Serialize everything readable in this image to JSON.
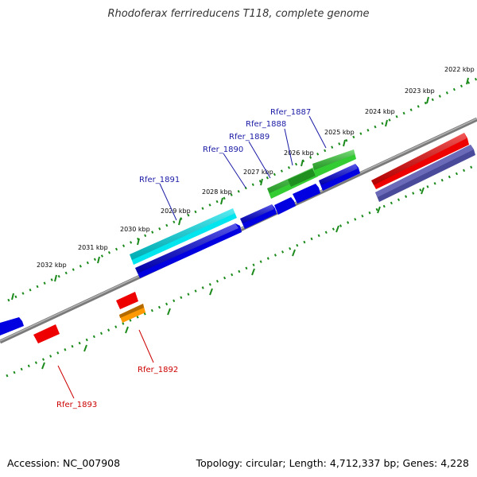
{
  "title": "Rhodoferax ferrireducens T118, complete genome",
  "footer": {
    "accession": "Accession: NC_007908",
    "topology": "Topology: circular; Length: 4,712,337 bp; Genes: 4,228"
  },
  "colors": {
    "backbone": "#808080",
    "tick": "#1a8a1a",
    "label_forward": "#1a1aa6",
    "label_reverse": "#cc0000"
  },
  "scale_labels": [
    "2022 kbp",
    "2023 kbp",
    "2024 kbp",
    "2025 kbp",
    "2026 kbp",
    "2027 kbp",
    "2028 kbp",
    "2029 kbp",
    "2030 kbp",
    "2031 kbp",
    "2032 kbp"
  ],
  "gene_labels": {
    "rfer_1887": "Rfer_1887",
    "rfer_1888": "Rfer_1888",
    "rfer_1889": "Rfer_1889",
    "rfer_1890": "Rfer_1890",
    "rfer_1891": "Rfer_1891",
    "rfer_1892": "Rfer_1892",
    "rfer_1893": "Rfer_1893"
  }
}
